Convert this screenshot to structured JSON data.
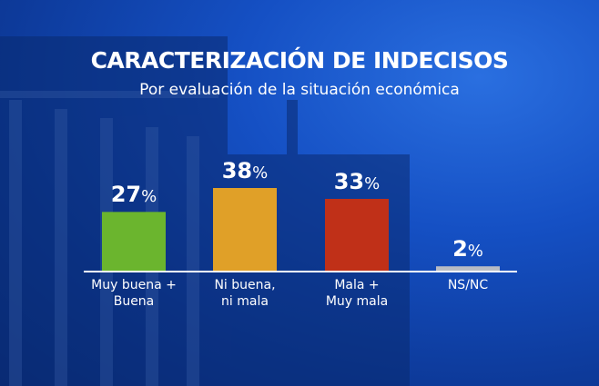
{
  "colors": {
    "background": "#1550c4",
    "axis": "#ffffff",
    "text": "#ffffff"
  },
  "chart_data": {
    "type": "bar",
    "title": "CARACTERIZACIÓN DE INDECISOS",
    "subtitle": "Por evaluación de la situación económica",
    "categories": [
      "Muy buena +\nBuena",
      "Ni buena,\nni mala",
      "Mala +\nMuy mala",
      "NS/NC"
    ],
    "values": [
      27,
      38,
      33,
      2
    ],
    "value_labels": [
      "27",
      "38",
      "33",
      "2"
    ],
    "unit": "%",
    "colors": [
      "#6bb52e",
      "#e0a028",
      "#c03018",
      "#b8bcc4"
    ],
    "xlabel": "",
    "ylabel": "",
    "ylim": [
      0,
      40
    ],
    "grid": false,
    "legend": "none"
  }
}
